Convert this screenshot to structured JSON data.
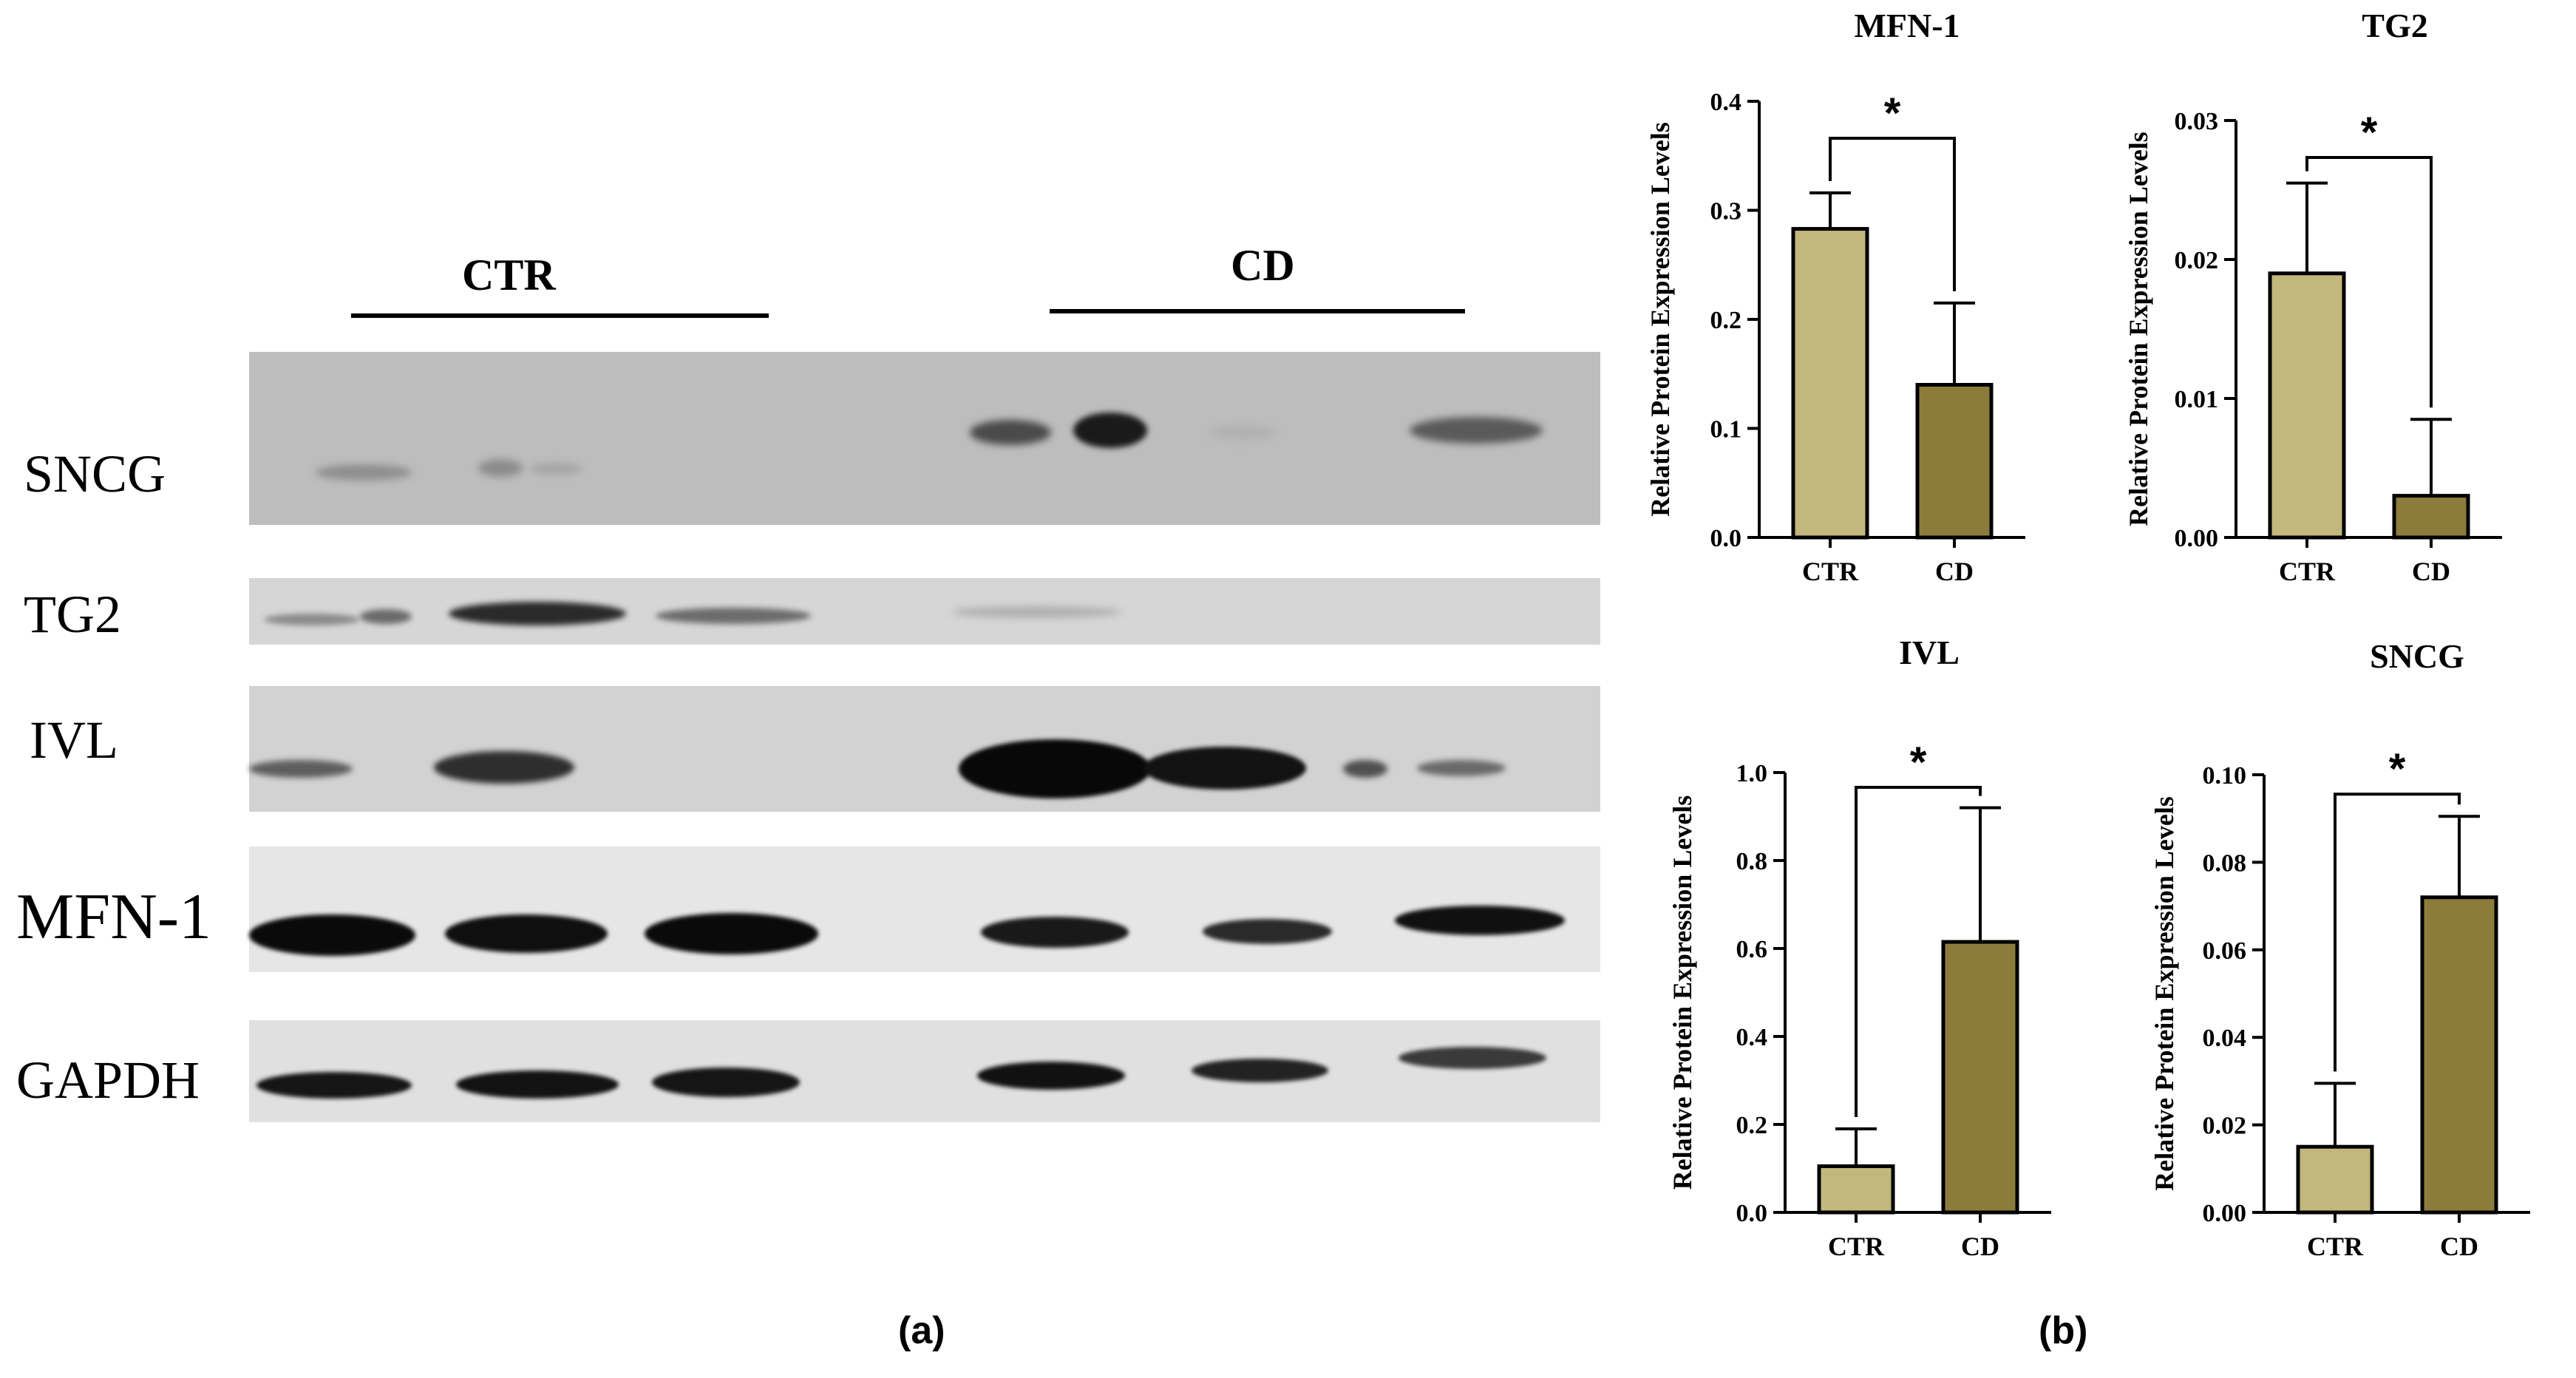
{
  "panel_a": {
    "label": "(a)",
    "groups": [
      "CTR",
      "CD"
    ],
    "rows": [
      "SNCG",
      "TG2",
      "IVL",
      "MFN-1",
      "GAPDH"
    ]
  },
  "panel_b": {
    "label": "(b)"
  },
  "colors": {
    "ctr": "#C2B77C",
    "cd": "#8C7C3C",
    "blot_bg": "#e0e0e0"
  },
  "chart_data": [
    {
      "type": "bar",
      "title": "MFN-1",
      "categories": [
        "CTR",
        "CD"
      ],
      "values": [
        0.283,
        0.14
      ],
      "errors": [
        0.033,
        0.075
      ],
      "ylabel": "Relative Protein  Expression Levels",
      "ylim": [
        0,
        0.4
      ],
      "yticks": [
        "0.0",
        "0.1",
        "0.2",
        "0.3",
        "0.4"
      ],
      "significance": "*"
    },
    {
      "type": "bar",
      "title": "TG2",
      "categories": [
        "CTR",
        "CD"
      ],
      "values": [
        0.019,
        0.003
      ],
      "errors": [
        0.0065,
        0.0055
      ],
      "ylabel": "Relative Protein  Expression Levels",
      "ylim": [
        0,
        0.03
      ],
      "yticks": [
        "0.00",
        "0.01",
        "0.02",
        "0.03"
      ],
      "significance": "*"
    },
    {
      "type": "bar",
      "title": "IVL",
      "categories": [
        "CTR",
        "CD"
      ],
      "values": [
        0.105,
        0.615
      ],
      "errors": [
        0.085,
        0.305
      ],
      "ylabel": "Relative Protein  Expression Levels",
      "ylim": [
        0,
        1.0
      ],
      "yticks": [
        "0.0",
        "0.2",
        "0.4",
        "0.6",
        "0.8",
        "1.0"
      ],
      "significance": "*"
    },
    {
      "type": "bar",
      "title": "SNCG",
      "categories": [
        "CTR",
        "CD"
      ],
      "values": [
        0.015,
        0.072
      ],
      "errors": [
        0.0145,
        0.0185
      ],
      "ylabel": "Relative Protein  Expression Levels",
      "ylim": [
        0,
        0.1
      ],
      "yticks": [
        "0.00",
        "0.02",
        "0.04",
        "0.06",
        "0.08",
        "0.10"
      ],
      "significance": "*"
    }
  ]
}
